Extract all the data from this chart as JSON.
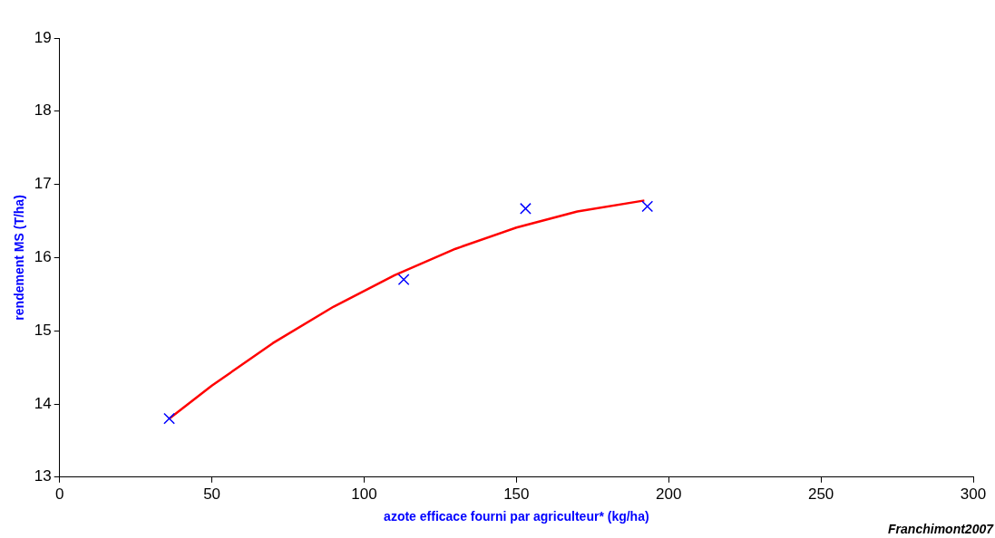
{
  "chart_data": {
    "type": "scatter",
    "xlabel": "azote efficace fourni par agriculteur* (kg/ha)",
    "ylabel": "rendement MS (T/ha)",
    "xlim": [
      0,
      300
    ],
    "xticks": [
      0,
      50,
      100,
      150,
      200,
      250,
      300
    ],
    "ylim": [
      13,
      19
    ],
    "yticks": [
      13,
      14,
      15,
      16,
      17,
      18,
      19
    ],
    "grid": false,
    "legend": false,
    "marker": "cross",
    "series": [
      {
        "color": "#0000ff",
        "x": [
          36,
          113,
          153,
          193
        ],
        "values": [
          13.8,
          15.7,
          16.67,
          16.7
        ]
      },
      {
        "type": "line",
        "color": "#ff0000",
        "marker": "none",
        "x": [
          36,
          50,
          70,
          90,
          110,
          130,
          150,
          170,
          192
        ],
        "values": [
          13.8,
          14.25,
          14.83,
          15.33,
          15.76,
          16.12,
          16.41,
          16.63,
          16.78
        ]
      }
    ],
    "annotations": [
      "Franchimont2007"
    ]
  }
}
